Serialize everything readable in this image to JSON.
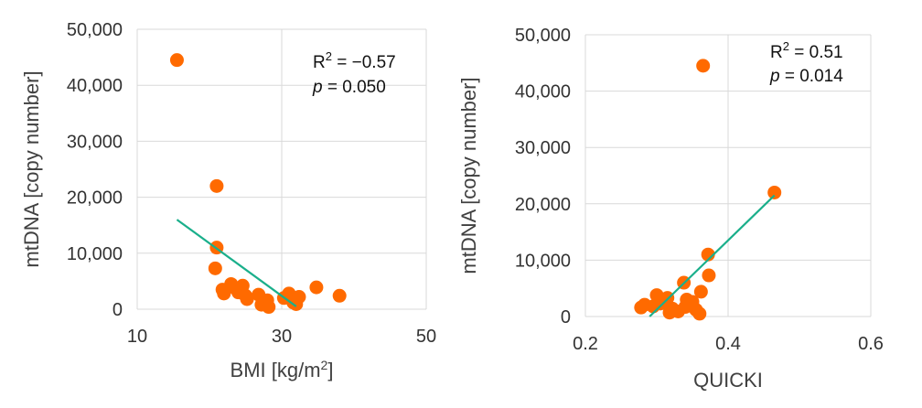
{
  "colors": {
    "point": "#ff6a00",
    "trend": "#1aaf8b",
    "grid": "#d9d9d9"
  },
  "chart_data": [
    {
      "type": "scatter",
      "xlabel": "BMI [kg/m",
      "xlabel_sup": "2",
      "xlabel_end": "]",
      "ylabel": "mtDNA [copy number]",
      "xlim": [
        10,
        50
      ],
      "ylim": [
        0,
        50000
      ],
      "xticks": [
        10,
        30,
        50
      ],
      "yticks": [
        0,
        10000,
        20000,
        30000,
        40000,
        50000
      ],
      "xtick_labels": [
        "10",
        "30",
        "50"
      ],
      "ytick_labels": [
        "0",
        "10,000",
        "20,000",
        "30,000",
        "40,000",
        "50,000"
      ],
      "grid": true,
      "annotation": {
        "r_label": "R",
        "r_sup": "2",
        "r_value": " = −0.57",
        "p_label": "p",
        "p_value": " = 0.050"
      },
      "trendline": {
        "x": [
          15.5,
          32
        ],
        "y": [
          16000,
          500
        ]
      },
      "points": [
        {
          "x": 15.5,
          "y": 44500
        },
        {
          "x": 21,
          "y": 22000
        },
        {
          "x": 21,
          "y": 11000
        },
        {
          "x": 20.8,
          "y": 7300
        },
        {
          "x": 21.8,
          "y": 3500
        },
        {
          "x": 22,
          "y": 2800
        },
        {
          "x": 23,
          "y": 4500
        },
        {
          "x": 23.5,
          "y": 3800
        },
        {
          "x": 24,
          "y": 3000
        },
        {
          "x": 24.6,
          "y": 4200
        },
        {
          "x": 25.2,
          "y": 1800
        },
        {
          "x": 25,
          "y": 2400
        },
        {
          "x": 26.8,
          "y": 2600
        },
        {
          "x": 27.2,
          "y": 800
        },
        {
          "x": 27.6,
          "y": 1100
        },
        {
          "x": 28,
          "y": 1600
        },
        {
          "x": 28.2,
          "y": 400
        },
        {
          "x": 30.3,
          "y": 2000
        },
        {
          "x": 31,
          "y": 2800
        },
        {
          "x": 31.6,
          "y": 1200
        },
        {
          "x": 32,
          "y": 900
        },
        {
          "x": 32.4,
          "y": 2200
        },
        {
          "x": 34.8,
          "y": 3900
        },
        {
          "x": 38,
          "y": 2400
        }
      ]
    },
    {
      "type": "scatter",
      "xlabel": "QUICKI",
      "ylabel": "mtDNA [copy number]",
      "xlim": [
        0.2,
        0.6
      ],
      "ylim": [
        0,
        50000
      ],
      "xticks": [
        0.2,
        0.4,
        0.6
      ],
      "yticks": [
        0,
        10000,
        20000,
        30000,
        40000,
        50000
      ],
      "xtick_labels": [
        "0.2",
        "0.4",
        "0.6"
      ],
      "ytick_labels": [
        "0",
        "10,000",
        "20,000",
        "30,000",
        "40,000",
        "50,000"
      ],
      "grid": true,
      "annotation": {
        "r_label": "R",
        "r_sup": "2",
        "r_value": " = 0.51",
        "p_label": "p",
        "p_value": " = 0.014"
      },
      "trendline": {
        "x": [
          0.29,
          0.465
        ],
        "y": [
          0,
          21500
        ]
      },
      "points": [
        {
          "x": 0.365,
          "y": 44500
        },
        {
          "x": 0.465,
          "y": 22000
        },
        {
          "x": 0.372,
          "y": 11000
        },
        {
          "x": 0.373,
          "y": 7300
        },
        {
          "x": 0.338,
          "y": 6000
        },
        {
          "x": 0.362,
          "y": 4400
        },
        {
          "x": 0.3,
          "y": 3800
        },
        {
          "x": 0.315,
          "y": 3300
        },
        {
          "x": 0.342,
          "y": 3000
        },
        {
          "x": 0.35,
          "y": 2600
        },
        {
          "x": 0.305,
          "y": 2300
        },
        {
          "x": 0.283,
          "y": 2100
        },
        {
          "x": 0.278,
          "y": 1600
        },
        {
          "x": 0.295,
          "y": 1800
        },
        {
          "x": 0.322,
          "y": 1400
        },
        {
          "x": 0.33,
          "y": 900
        },
        {
          "x": 0.318,
          "y": 700
        },
        {
          "x": 0.34,
          "y": 1700
        },
        {
          "x": 0.355,
          "y": 1200
        },
        {
          "x": 0.36,
          "y": 500
        },
        {
          "x": 0.348,
          "y": 2200
        },
        {
          "x": 0.31,
          "y": 2600
        }
      ]
    }
  ]
}
